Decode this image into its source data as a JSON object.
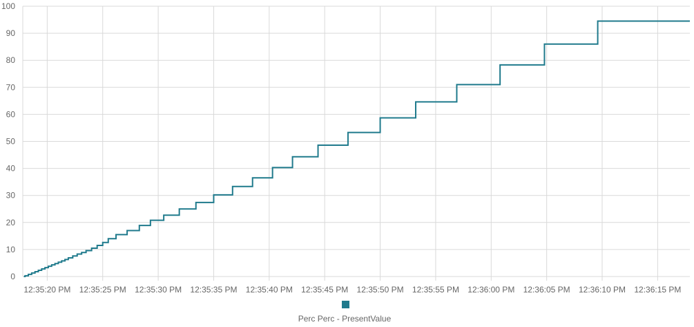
{
  "chart_data": {
    "type": "line",
    "step": true,
    "title": "",
    "xlabel": "",
    "ylabel": "",
    "ylim": [
      0,
      100
    ],
    "yticks": [
      "0",
      "10",
      "20",
      "30",
      "40",
      "50",
      "60",
      "70",
      "80",
      "90",
      "100"
    ],
    "xticks": [
      "12:35:20 PM",
      "12:35:25 PM",
      "12:35:30 PM",
      "12:35:35 PM",
      "12:35:40 PM",
      "12:35:45 PM",
      "12:35:50 PM",
      "12:35:55 PM",
      "12:36:00 PM",
      "12:36:05 PM",
      "12:36:15 PM"
    ],
    "xtick_seconds": [
      20,
      25,
      30,
      35,
      40,
      45,
      50,
      55,
      60,
      65,
      70,
      75
    ],
    "xtick_labels_all": [
      "12:35:20 PM",
      "12:35:25 PM",
      "12:35:30 PM",
      "12:35:35 PM",
      "12:35:40 PM",
      "12:35:45 PM",
      "12:35:50 PM",
      "12:35:55 PM",
      "12:36:00 PM",
      "12:36:05 PM",
      "12:36:10 PM",
      "12:36:15 PM"
    ],
    "grid": true,
    "legend_position": "bottom-center",
    "series": [
      {
        "name": "Perc Perc - PresentValue",
        "color": "#1f7a8c",
        "x": [
          18,
          18.3,
          18.6,
          18.9,
          19.2,
          19.5,
          19.8,
          20.1,
          20.4,
          20.7,
          21.0,
          21.3,
          21.6,
          21.9,
          22.3,
          22.7,
          23.1,
          23.5,
          24.0,
          24.5,
          25.0,
          25.5,
          26.2,
          27.2,
          28.3,
          29.3,
          30.5,
          31.9,
          33.4,
          35.0,
          36.7,
          38.5,
          40.3,
          42.1,
          44.4,
          47.1,
          50.0,
          53.2,
          56.9,
          60.8,
          64.8,
          69.6,
          74.8,
          77.6
        ],
        "y": [
          0.3,
          0.8,
          1.3,
          1.8,
          2.3,
          2.8,
          3.3,
          3.8,
          4.3,
          4.8,
          5.3,
          5.8,
          6.3,
          6.9,
          7.6,
          8.3,
          8.9,
          9.6,
          10.5,
          11.5,
          12.6,
          14.0,
          15.5,
          17.0,
          18.9,
          20.8,
          22.7,
          25.0,
          27.4,
          30.2,
          33.3,
          36.5,
          40.3,
          44.3,
          48.6,
          53.3,
          58.7,
          64.6,
          71.0,
          78.3,
          86.0,
          94.5,
          94.5,
          94.5
        ]
      }
    ]
  },
  "legend": {
    "label": "Perc Perc - PresentValue",
    "color": "#1f7a8c"
  }
}
